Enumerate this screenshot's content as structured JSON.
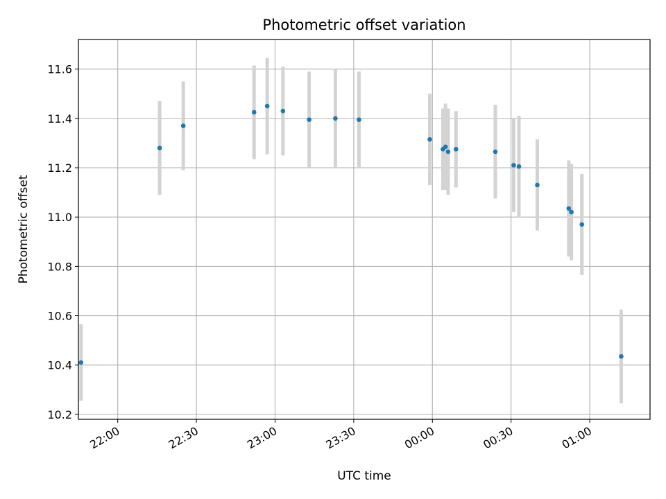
{
  "chart_data": {
    "type": "scatter",
    "title": "Photometric offset variation",
    "xlabel": "UTC time",
    "ylabel": "Photometric offset",
    "grid": true,
    "colors": {
      "points": "#1f77b4",
      "errorbars": "#d3d3d3",
      "grid": "#b0b0b0"
    },
    "x_ticks": [
      "22:00",
      "22:30",
      "23:00",
      "23:30",
      "00:00",
      "00:30",
      "01:00"
    ],
    "y_ticks": [
      "10.2",
      "10.4",
      "10.6",
      "10.8",
      "11.0",
      "11.2",
      "11.4",
      "11.6"
    ],
    "xlim": [
      "21:45",
      "01:23"
    ],
    "ylim": [
      10.18,
      11.72
    ],
    "points": [
      {
        "x": "21:46",
        "y": 10.41,
        "yerr": 0.155
      },
      {
        "x": "22:16",
        "y": 11.28,
        "yerr": 0.19
      },
      {
        "x": "22:25",
        "y": 11.37,
        "yerr": 0.18
      },
      {
        "x": "22:52",
        "y": 11.425,
        "yerr": 0.19
      },
      {
        "x": "22:57",
        "y": 11.45,
        "yerr": 0.195
      },
      {
        "x": "23:03",
        "y": 11.43,
        "yerr": 0.18
      },
      {
        "x": "23:13",
        "y": 11.395,
        "yerr": 0.195
      },
      {
        "x": "23:23",
        "y": 11.4,
        "yerr": 0.2
      },
      {
        "x": "23:32",
        "y": 11.395,
        "yerr": 0.195
      },
      {
        "x": "23:59",
        "y": 11.315,
        "yerr": 0.185
      },
      {
        "x": "00:04",
        "y": 11.275,
        "yerr": 0.165
      },
      {
        "x": "00:05",
        "y": 11.285,
        "yerr": 0.175
      },
      {
        "x": "00:06",
        "y": 11.265,
        "yerr": 0.175
      },
      {
        "x": "00:09",
        "y": 11.275,
        "yerr": 0.155
      },
      {
        "x": "00:24",
        "y": 11.265,
        "yerr": 0.19
      },
      {
        "x": "00:31",
        "y": 11.21,
        "yerr": 0.19
      },
      {
        "x": "00:33",
        "y": 11.205,
        "yerr": 0.205
      },
      {
        "x": "00:40",
        "y": 11.13,
        "yerr": 0.185
      },
      {
        "x": "00:52",
        "y": 11.035,
        "yerr": 0.195
      },
      {
        "x": "00:53",
        "y": 11.02,
        "yerr": 0.195
      },
      {
        "x": "00:57",
        "y": 10.97,
        "yerr": 0.205
      },
      {
        "x": "01:12",
        "y": 10.435,
        "yerr": 0.19
      }
    ]
  }
}
